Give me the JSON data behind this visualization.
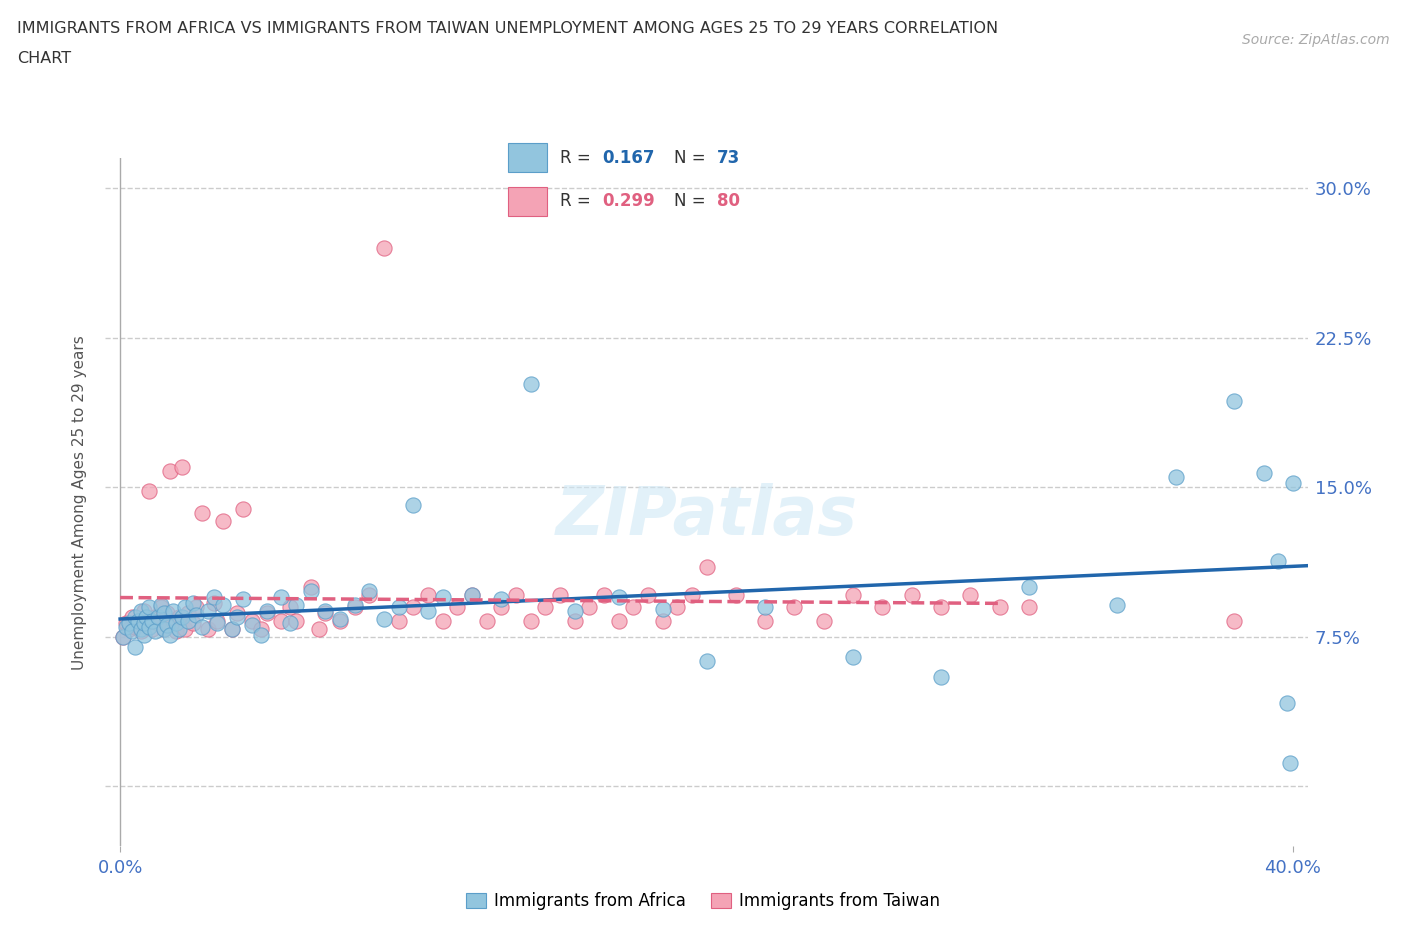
{
  "title_line1": "IMMIGRANTS FROM AFRICA VS IMMIGRANTS FROM TAIWAN UNEMPLOYMENT AMONG AGES 25 TO 29 YEARS CORRELATION",
  "title_line2": "CHART",
  "source": "Source: ZipAtlas.com",
  "ylabel": "Unemployment Among Ages 25 to 29 years",
  "xlim": [
    -0.005,
    0.405
  ],
  "ylim": [
    -0.03,
    0.315
  ],
  "yticks": [
    0.0,
    0.075,
    0.15,
    0.225,
    0.3
  ],
  "ytick_labels": [
    "",
    "7.5%",
    "15.0%",
    "22.5%",
    "30.0%"
  ],
  "xtick_left_label": "0.0%",
  "xtick_right_label": "40.0%",
  "africa_color": "#92c5de",
  "africa_edge_color": "#5b9ec9",
  "taiwan_color": "#f4a3b5",
  "taiwan_edge_color": "#e06080",
  "africa_line_color": "#2166ac",
  "taiwan_line_color": "#e06080",
  "africa_R": 0.167,
  "africa_N": 73,
  "taiwan_R": 0.299,
  "taiwan_N": 80,
  "africa_scatter_x": [
    0.001,
    0.002,
    0.003,
    0.004,
    0.005,
    0.005,
    0.006,
    0.007,
    0.007,
    0.008,
    0.008,
    0.009,
    0.01,
    0.01,
    0.011,
    0.012,
    0.013,
    0.014,
    0.015,
    0.015,
    0.016,
    0.017,
    0.018,
    0.019,
    0.02,
    0.021,
    0.022,
    0.023,
    0.025,
    0.026,
    0.028,
    0.03,
    0.032,
    0.033,
    0.035,
    0.038,
    0.04,
    0.042,
    0.045,
    0.048,
    0.05,
    0.055,
    0.058,
    0.06,
    0.065,
    0.07,
    0.075,
    0.08,
    0.085,
    0.09,
    0.095,
    0.1,
    0.105,
    0.11,
    0.12,
    0.13,
    0.14,
    0.155,
    0.17,
    0.185,
    0.2,
    0.22,
    0.25,
    0.28,
    0.31,
    0.34,
    0.36,
    0.38,
    0.39,
    0.395,
    0.398,
    0.399,
    0.4
  ],
  "africa_scatter_y": [
    0.075,
    0.08,
    0.082,
    0.078,
    0.085,
    0.07,
    0.083,
    0.079,
    0.088,
    0.076,
    0.082,
    0.085,
    0.08,
    0.09,
    0.083,
    0.078,
    0.085,
    0.091,
    0.079,
    0.087,
    0.081,
    0.076,
    0.088,
    0.082,
    0.079,
    0.085,
    0.09,
    0.083,
    0.092,
    0.086,
    0.08,
    0.088,
    0.095,
    0.082,
    0.091,
    0.079,
    0.085,
    0.094,
    0.081,
    0.076,
    0.088,
    0.095,
    0.082,
    0.091,
    0.098,
    0.088,
    0.084,
    0.091,
    0.098,
    0.084,
    0.09,
    0.141,
    0.088,
    0.095,
    0.096,
    0.094,
    0.202,
    0.088,
    0.095,
    0.089,
    0.063,
    0.09,
    0.065,
    0.055,
    0.1,
    0.091,
    0.155,
    0.193,
    0.157,
    0.113,
    0.042,
    0.012,
    0.152
  ],
  "taiwan_scatter_x": [
    0.001,
    0.002,
    0.003,
    0.004,
    0.005,
    0.006,
    0.007,
    0.008,
    0.009,
    0.01,
    0.011,
    0.012,
    0.013,
    0.014,
    0.015,
    0.016,
    0.017,
    0.018,
    0.019,
    0.02,
    0.021,
    0.022,
    0.023,
    0.025,
    0.026,
    0.028,
    0.03,
    0.032,
    0.033,
    0.035,
    0.038,
    0.04,
    0.042,
    0.045,
    0.048,
    0.05,
    0.055,
    0.058,
    0.06,
    0.065,
    0.068,
    0.07,
    0.075,
    0.08,
    0.085,
    0.09,
    0.095,
    0.1,
    0.105,
    0.11,
    0.115,
    0.12,
    0.125,
    0.13,
    0.135,
    0.14,
    0.145,
    0.15,
    0.155,
    0.16,
    0.165,
    0.17,
    0.175,
    0.18,
    0.185,
    0.19,
    0.195,
    0.2,
    0.21,
    0.22,
    0.23,
    0.24,
    0.25,
    0.26,
    0.27,
    0.28,
    0.29,
    0.3,
    0.31,
    0.38
  ],
  "taiwan_scatter_y": [
    0.075,
    0.082,
    0.079,
    0.085,
    0.08,
    0.083,
    0.078,
    0.088,
    0.082,
    0.148,
    0.079,
    0.085,
    0.082,
    0.09,
    0.079,
    0.087,
    0.158,
    0.083,
    0.078,
    0.085,
    0.16,
    0.079,
    0.087,
    0.082,
    0.09,
    0.137,
    0.079,
    0.092,
    0.083,
    0.133,
    0.079,
    0.087,
    0.139,
    0.083,
    0.079,
    0.087,
    0.083,
    0.09,
    0.083,
    0.1,
    0.079,
    0.087,
    0.083,
    0.09,
    0.096,
    0.27,
    0.083,
    0.09,
    0.096,
    0.083,
    0.09,
    0.096,
    0.083,
    0.09,
    0.096,
    0.083,
    0.09,
    0.096,
    0.083,
    0.09,
    0.096,
    0.083,
    0.09,
    0.096,
    0.083,
    0.09,
    0.096,
    0.11,
    0.096,
    0.083,
    0.09,
    0.083,
    0.096,
    0.09,
    0.096,
    0.09,
    0.096,
    0.09,
    0.09,
    0.083
  ],
  "background_color": "#ffffff",
  "grid_color": "#cccccc",
  "watermark_color": "#d0e8f5",
  "watermark_text": "ZIPatlas"
}
